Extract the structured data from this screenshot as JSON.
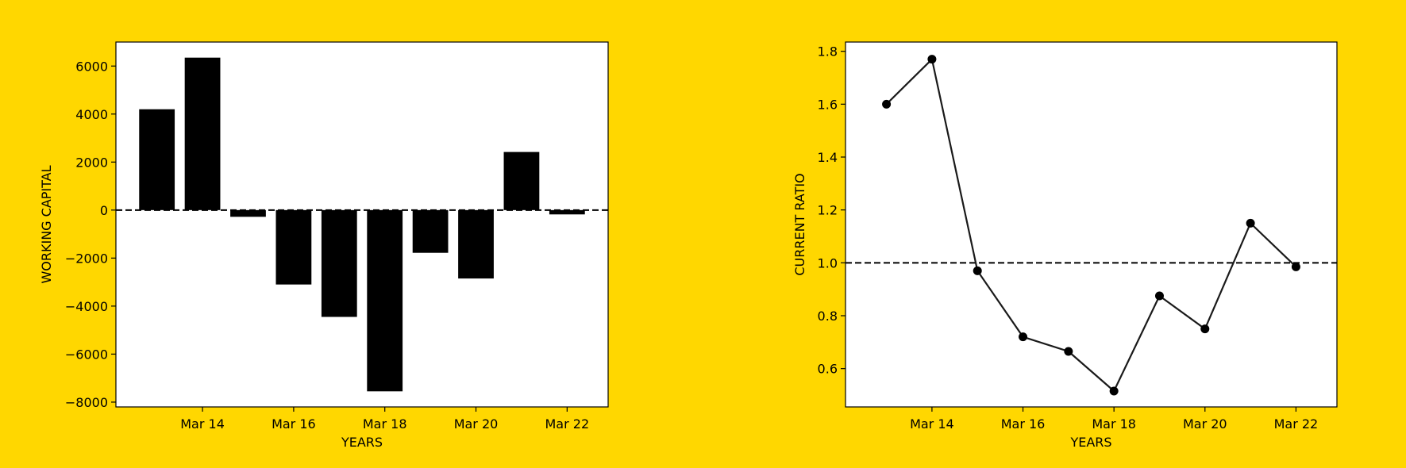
{
  "background_color": "#FFD700",
  "chart_data": [
    {
      "type": "bar",
      "xlabel": "YEARS",
      "ylabel": "WORKING CAPITAL",
      "x": [
        "Mar 13",
        "Mar 14",
        "Mar 15",
        "Mar 16",
        "Mar 17",
        "Mar 18",
        "Mar 19",
        "Mar 20",
        "Mar 21",
        "Mar 22"
      ],
      "values": [
        4200,
        6350,
        -280,
        -3100,
        -4450,
        -7550,
        -1780,
        -2850,
        2420,
        -180
      ],
      "xticks": [
        "Mar 14",
        "Mar 16",
        "Mar 18",
        "Mar 20",
        "Mar 22"
      ],
      "yticks": [
        "6000",
        "4000",
        "2000",
        "0",
        "−2000",
        "−4000",
        "−6000",
        "−8000"
      ],
      "ylim": [
        -8200,
        7000
      ],
      "reference_line": 0,
      "bar_color": "#000000",
      "grid": false
    },
    {
      "type": "line",
      "xlabel": "YEARS",
      "ylabel": "CURRENT RATIO",
      "x": [
        "Mar 13",
        "Mar 14",
        "Mar 15",
        "Mar 16",
        "Mar 17",
        "Mar 18",
        "Mar 19",
        "Mar 20",
        "Mar 21",
        "Mar 22"
      ],
      "values": [
        1.6,
        1.77,
        0.97,
        0.72,
        0.665,
        0.515,
        0.875,
        0.75,
        1.15,
        0.985
      ],
      "xticks": [
        "Mar 14",
        "Mar 16",
        "Mar 18",
        "Mar 20",
        "Mar 22"
      ],
      "yticks": [
        "1.8",
        "1.6",
        "1.4",
        "1.2",
        "1.0",
        "0.8",
        "0.6"
      ],
      "ylim": [
        0.455,
        1.835
      ],
      "reference_line": 1.0,
      "line_color": "#1a1a1a",
      "marker_color": "#000000",
      "grid": false
    }
  ]
}
